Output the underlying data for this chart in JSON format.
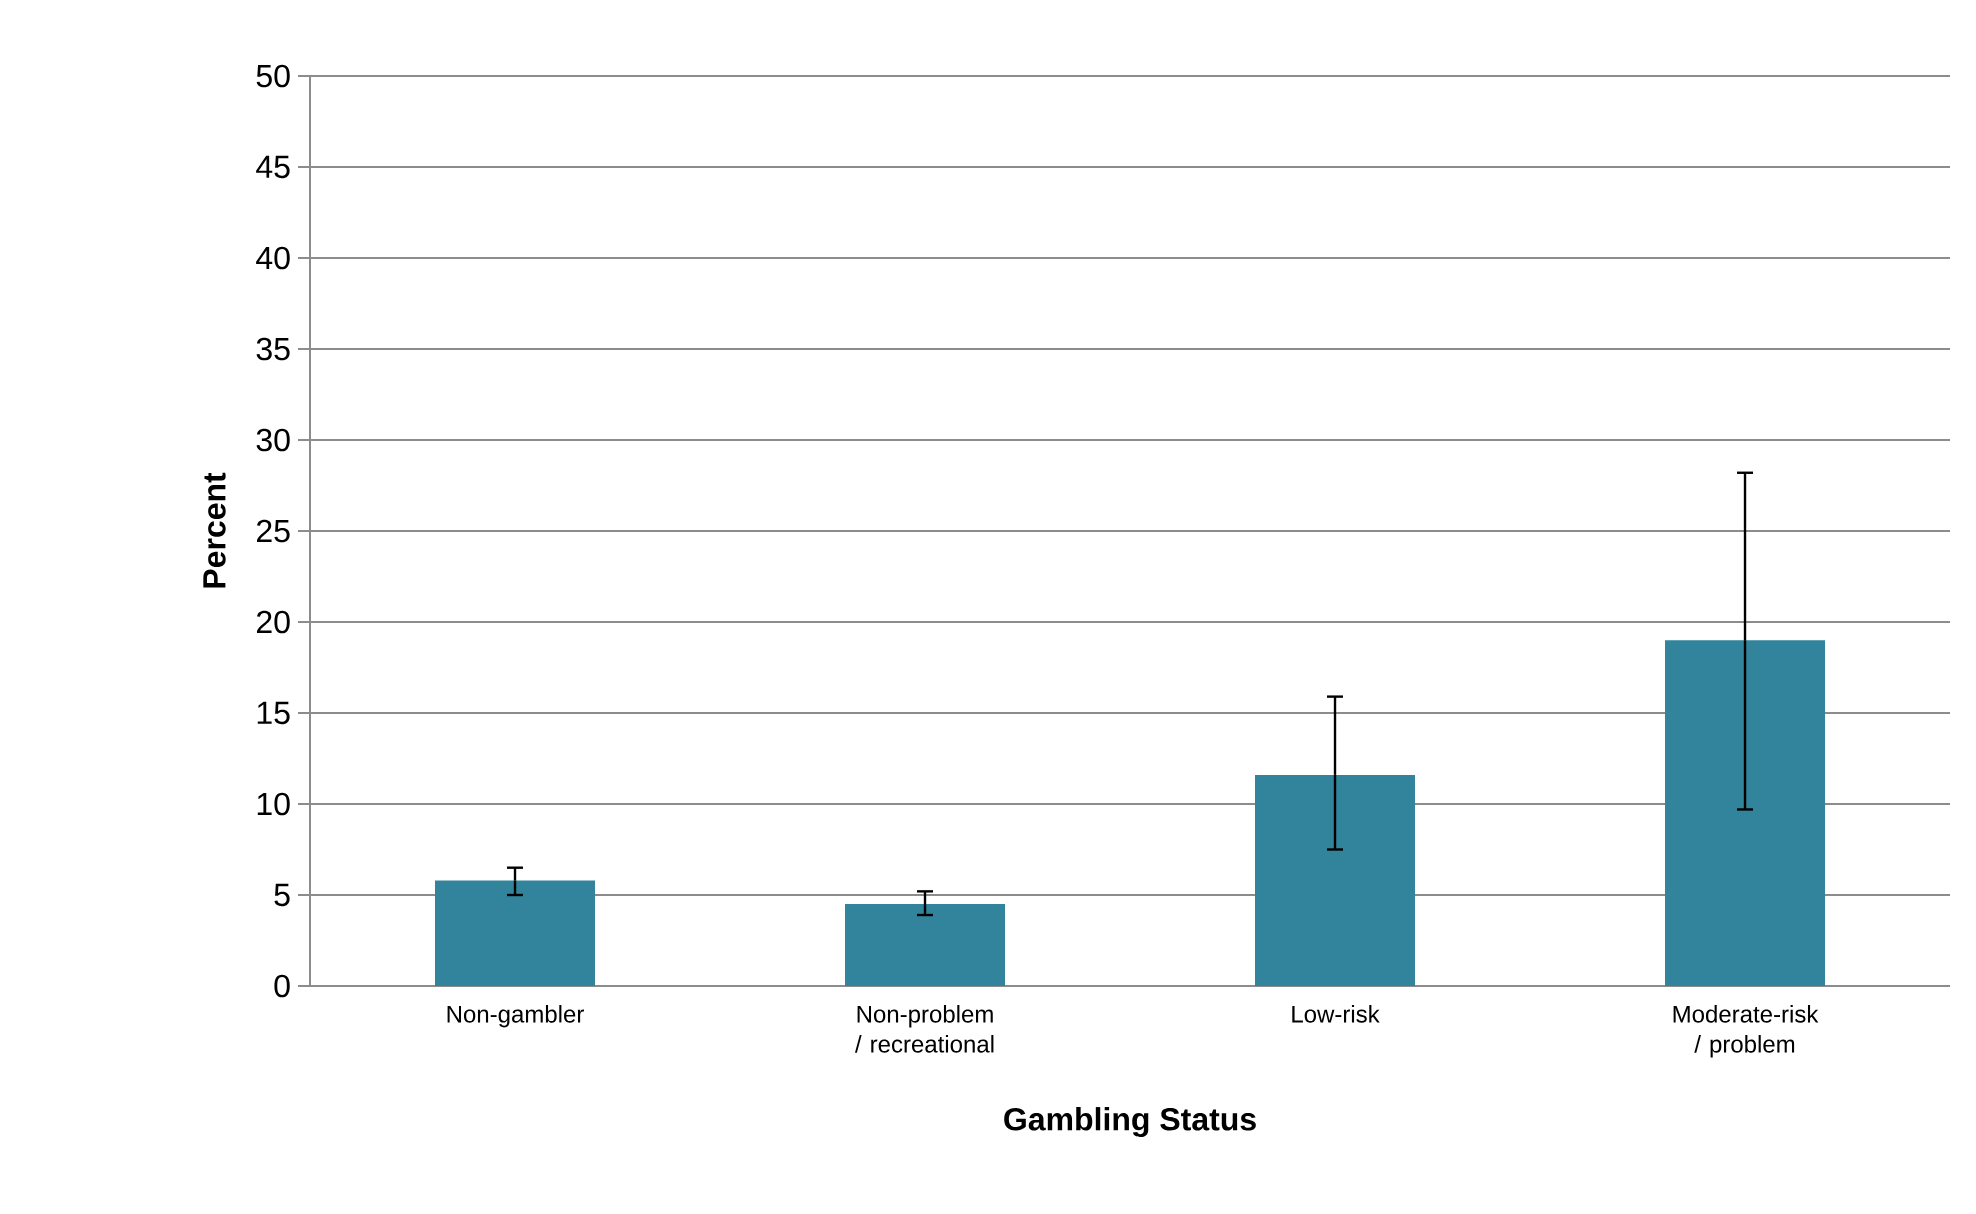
{
  "chart_data": {
    "type": "bar",
    "xlabel": "Gambling Status",
    "ylabel": "Percent",
    "categories": [
      "Non-gambler",
      "Non-problem / recreational",
      "Low-risk",
      "Moderate-risk / problem"
    ],
    "values": [
      5.8,
      4.5,
      11.6,
      19.0
    ],
    "errors": [
      [
        5.0,
        6.5
      ],
      [
        3.9,
        5.2
      ],
      [
        7.5,
        15.9
      ],
      [
        9.7,
        28.2
      ]
    ],
    "color": "#31849b",
    "ylim": [
      0,
      50
    ],
    "yticks": [
      0,
      5,
      10,
      15,
      20,
      25,
      30,
      35,
      40,
      45,
      50
    ],
    "grid": "y"
  }
}
